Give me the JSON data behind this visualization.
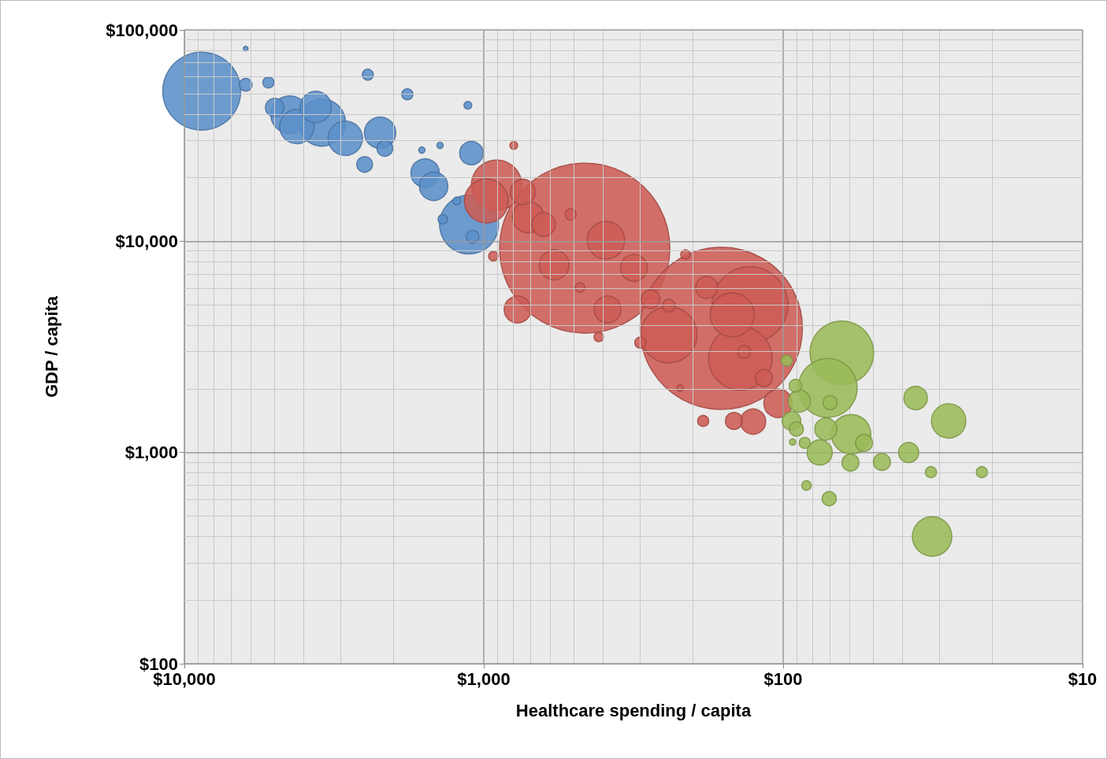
{
  "chart_data": {
    "type": "bubble",
    "xlabel": "Healthcare spending / capita",
    "ylabel": "GDP / capita",
    "log": "xy",
    "grid": true,
    "xlim": [
      10000,
      10
    ],
    "xticks": [
      {
        "value": 10000,
        "label": "$10,000"
      },
      {
        "value": 1000,
        "label": "$1,000"
      },
      {
        "value": 100,
        "label": "$100"
      },
      {
        "value": 10,
        "label": "$10"
      }
    ],
    "ylim": [
      100,
      100000
    ],
    "yticks": [
      {
        "value": 100,
        "label": "$100"
      },
      {
        "value": 1000,
        "label": "$1,000"
      },
      {
        "value": 10000,
        "label": "$10,000"
      },
      {
        "value": 100000,
        "label": "$100,000"
      }
    ],
    "series": [
      {
        "color": "#5b8fc9",
        "x": [
          8750,
          1120,
          3470,
          4450,
          4210,
          2900,
          3640,
          2220,
          1570,
          1470,
          1100,
          4990,
          2500,
          2140,
          6240,
          1090,
          5240,
          2440,
          1800,
          1370,
          1130,
          1230,
          1400,
          1610,
          6240
        ],
        "values": [
          51300,
          12000,
          36400,
          39700,
          34900,
          30700,
          43200,
          32600,
          21000,
          18200,
          26100,
          42900,
          23100,
          27500,
          55000,
          10500,
          56400,
          61400,
          49600,
          12700,
          44000,
          15500,
          28400,
          27000,
          81500
        ],
        "sizes": [
          0.21,
          0.12,
          0.077,
          0.049,
          0.041,
          0.041,
          0.034,
          0.034,
          0.028,
          0.028,
          0.019,
          0.012,
          0.0086,
          0.0086,
          0.0055,
          0.0055,
          0.0042,
          0.0042,
          0.0042,
          0.0031,
          0.0021,
          0.0021,
          0.0014,
          0.0014,
          0.00077
        ]
      },
      {
        "color": "#cd5c55",
        "x": [
          460,
          161,
          129,
          139,
          241,
          906,
          980,
          148,
          391,
          711,
          582,
          315,
          771,
          386,
          741,
          631,
          126,
          104,
          180,
          277,
          146,
          116,
          135,
          241,
          513,
          185,
          300,
          212,
          929,
          413,
          477,
          794,
          221
        ],
        "values": [
          9270,
          3870,
          5000,
          2790,
          3610,
          18400,
          15500,
          4480,
          10100,
          13000,
          7730,
          7480,
          4750,
          4750,
          17100,
          12000,
          1400,
          1710,
          6040,
          5310,
          1410,
          2250,
          3000,
          4960,
          13400,
          1410,
          3310,
          8650,
          8500,
          3520,
          6040,
          28400,
          2020
        ],
        "sizes": [
          1,
          0.91,
          0.2,
          0.14,
          0.11,
          0.088,
          0.067,
          0.067,
          0.049,
          0.034,
          0.031,
          0.025,
          0.025,
          0.025,
          0.022,
          0.019,
          0.022,
          0.028,
          0.017,
          0.012,
          0.01,
          0.01,
          0.0055,
          0.0055,
          0.0042,
          0.0042,
          0.0042,
          0.0031,
          0.0031,
          0.0031,
          0.0031,
          0.0021,
          0.0014
        ]
      },
      {
        "color": "#9bbb59",
        "x": [
          63.7,
          71,
          59.3,
          31.8,
          28,
          75.5,
          36.1,
          88.3,
          72,
          38.1,
          93.8,
          46.8,
          59.6,
          53.7,
          70.2,
          90.4,
          69.7,
          91,
          97.3,
          84.7,
          32.1,
          21.7,
          83.6,
          93
        ],
        "values": [
          2960,
          2020,
          1220,
          400,
          1410,
          1000,
          1810,
          1750,
          1290,
          1000,
          1410,
          902,
          895,
          1110,
          604,
          1290,
          1720,
          2070,
          2720,
          1110,
          807,
          807,
          698,
          1120
        ],
        "sizes": [
          0.14,
          0.12,
          0.054,
          0.054,
          0.041,
          0.022,
          0.019,
          0.017,
          0.017,
          0.014,
          0.012,
          0.01,
          0.01,
          0.01,
          0.0069,
          0.0069,
          0.0069,
          0.0055,
          0.0042,
          0.0042,
          0.0042,
          0.0042,
          0.0031,
          0.0014
        ]
      }
    ]
  }
}
